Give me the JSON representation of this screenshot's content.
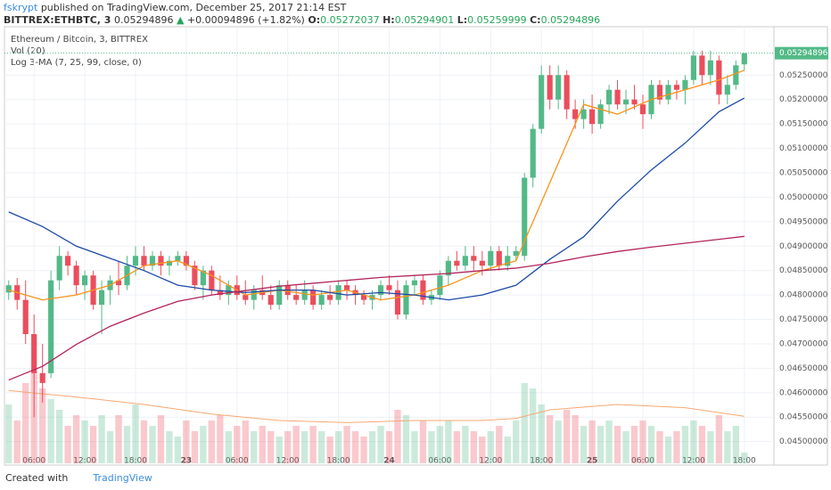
{
  "header": {
    "author": "fskrypt",
    "published": "published on TradingView.com, December 25, 2017 21:14 EST",
    "symbol": "BITTREX:ETHBTC, 3",
    "arrow": "▲",
    "change": "+0.00094896 (+1.82%)",
    "o": "O:",
    "h": "H:",
    "l": "L:",
    "c": "C:"
  },
  "legend": {
    "title": "Ethereum / Bitcoin, 3, BITTREX",
    "vol": "Vol (20)",
    "ma": "Log 3-MA (7, 25, 99, close, 0)"
  },
  "footer": {
    "created": "Created with",
    "brand": "TradingView"
  },
  "chart_data": {
    "type": "candlestick",
    "xlim": [
      -0.5,
      90.5
    ],
    "xticks": [
      {
        "value": 3,
        "label": "06:00"
      },
      {
        "value": 9,
        "label": "12:00"
      },
      {
        "value": 15,
        "label": "18:00"
      },
      {
        "value": 21,
        "label": "23"
      },
      {
        "value": 27,
        "label": "06:00"
      },
      {
        "value": 33,
        "label": "12:00"
      },
      {
        "value": 39,
        "label": "18:00"
      },
      {
        "value": 45,
        "label": "24"
      },
      {
        "value": 51,
        "label": "06:00"
      },
      {
        "value": 57,
        "label": "12:00"
      },
      {
        "value": 63,
        "label": "18:00"
      },
      {
        "value": 69,
        "label": "25"
      },
      {
        "value": 75,
        "label": "06:00"
      },
      {
        "value": 81,
        "label": "12:00"
      },
      {
        "value": 87,
        "label": "18:00"
      }
    ],
    "ylim": [
      0.04452,
      0.05349
    ],
    "yticks": [
      {
        "value": 0.045,
        "label": "0.04500000"
      },
      {
        "value": 0.0455,
        "label": "0.04550000"
      },
      {
        "value": 0.046,
        "label": "0.04600000"
      },
      {
        "value": 0.0465,
        "label": "0.04650000"
      },
      {
        "value": 0.047,
        "label": "0.04700000"
      },
      {
        "value": 0.0475,
        "label": "0.04750000"
      },
      {
        "value": 0.048,
        "label": "0.04800000"
      },
      {
        "value": 0.0485,
        "label": "0.04850000"
      },
      {
        "value": 0.049,
        "label": "0.04900000"
      },
      {
        "value": 0.0495,
        "label": "0.04950000"
      },
      {
        "value": 0.05,
        "label": "0.05000000"
      },
      {
        "value": 0.0505,
        "label": "0.05050000"
      },
      {
        "value": 0.051,
        "label": "0.05100000"
      },
      {
        "value": 0.0515,
        "label": "0.05150000"
      },
      {
        "value": 0.052,
        "label": "0.05200000"
      },
      {
        "value": 0.0525,
        "label": "0.05250000"
      }
    ],
    "up_color": "#53b987",
    "down_color": "#eb4d5c",
    "grid": true,
    "open": [
      0.04805,
      0.0482,
      0.0479,
      0.0472,
      0.0464,
      0.0464,
      0.0483,
      0.0488,
      0.0486,
      0.0482,
      0.0484,
      0.0478,
      0.0481,
      0.0483,
      0.0482,
      0.0486,
      0.0488,
      0.0486,
      0.0488,
      0.0486,
      0.0487,
      0.0488,
      0.0486,
      0.0482,
      0.0485,
      0.0481,
      0.048,
      0.0482,
      0.048,
      0.0479,
      0.0481,
      0.048,
      0.0478,
      0.0482,
      0.048,
      0.0479,
      0.0481,
      0.0478,
      0.048,
      0.0479,
      0.0482,
      0.0481,
      0.048,
      0.0479,
      0.048,
      0.0482,
      0.0481,
      0.0476,
      0.0482,
      0.0483,
      0.0479,
      0.048,
      0.0484,
      0.0487,
      0.0486,
      0.0488,
      0.0487,
      0.0486,
      0.0489,
      0.0486,
      0.0488,
      0.0488,
      0.0504,
      0.0514,
      0.0525,
      0.052,
      0.0525,
      0.0518,
      0.0516,
      0.0518,
      0.0515,
      0.0519,
      0.0522,
      0.0519,
      0.052,
      0.0519,
      0.0517,
      0.0523,
      0.052,
      0.0523,
      0.0522,
      0.0524,
      0.0529,
      0.0525,
      0.0528,
      0.0521,
      0.0523,
      0.05272037
    ],
    "high": [
      0.0483,
      0.04835,
      0.0483,
      0.0476,
      0.047,
      0.0485,
      0.049,
      0.0489,
      0.0487,
      0.0485,
      0.0485,
      0.0483,
      0.0484,
      0.0487,
      0.0488,
      0.049,
      0.049,
      0.0489,
      0.0489,
      0.0488,
      0.0489,
      0.0489,
      0.0487,
      0.0486,
      0.0486,
      0.0484,
      0.0483,
      0.0484,
      0.0483,
      0.0482,
      0.0484,
      0.0482,
      0.0483,
      0.0483,
      0.0482,
      0.0483,
      0.0482,
      0.0481,
      0.0482,
      0.0483,
      0.0483,
      0.0482,
      0.0481,
      0.0481,
      0.0483,
      0.0484,
      0.0483,
      0.0483,
      0.0484,
      0.0484,
      0.0481,
      0.0485,
      0.0488,
      0.0489,
      0.049,
      0.049,
      0.0489,
      0.049,
      0.049,
      0.049,
      0.049,
      0.0505,
      0.0515,
      0.0527,
      0.0527,
      0.0527,
      0.0526,
      0.052,
      0.052,
      0.0521,
      0.052,
      0.0523,
      0.0524,
      0.0522,
      0.0523,
      0.0521,
      0.0524,
      0.0524,
      0.0524,
      0.0524,
      0.0525,
      0.053,
      0.053,
      0.053,
      0.0529,
      0.0525,
      0.0528,
      0.05294901
    ],
    "low": [
      0.0479,
      0.0477,
      0.047,
      0.0455,
      0.0458,
      0.0463,
      0.0481,
      0.0484,
      0.048,
      0.0479,
      0.0477,
      0.0472,
      0.0478,
      0.048,
      0.0481,
      0.0484,
      0.0485,
      0.0485,
      0.0484,
      0.0484,
      0.0486,
      0.0485,
      0.0481,
      0.0479,
      0.048,
      0.0479,
      0.0478,
      0.0479,
      0.0478,
      0.0477,
      0.0479,
      0.0477,
      0.0477,
      0.0479,
      0.0478,
      0.0478,
      0.0477,
      0.0477,
      0.0478,
      0.0478,
      0.0479,
      0.0478,
      0.0478,
      0.0477,
      0.0479,
      0.048,
      0.0475,
      0.0475,
      0.048,
      0.0478,
      0.0478,
      0.0479,
      0.0482,
      0.0485,
      0.0485,
      0.0485,
      0.0484,
      0.0485,
      0.0485,
      0.0485,
      0.0487,
      0.0487,
      0.0502,
      0.0513,
      0.0518,
      0.0518,
      0.0516,
      0.0514,
      0.0514,
      0.0513,
      0.0514,
      0.0517,
      0.0518,
      0.0517,
      0.0518,
      0.0514,
      0.0516,
      0.0519,
      0.0519,
      0.052,
      0.0519,
      0.0523,
      0.0523,
      0.0523,
      0.0519,
      0.0519,
      0.0522,
      0.05259999
    ],
    "close": [
      0.0482,
      0.0479,
      0.0472,
      0.0464,
      0.0462,
      0.0483,
      0.0488,
      0.0486,
      0.0482,
      0.0484,
      0.0478,
      0.0481,
      0.0483,
      0.0482,
      0.0486,
      0.0488,
      0.0486,
      0.0488,
      0.0486,
      0.0487,
      0.0488,
      0.0486,
      0.0482,
      0.0485,
      0.0481,
      0.048,
      0.0482,
      0.048,
      0.0479,
      0.0481,
      0.048,
      0.0478,
      0.0482,
      0.048,
      0.0479,
      0.0481,
      0.0478,
      0.048,
      0.0479,
      0.0482,
      0.0481,
      0.048,
      0.0479,
      0.048,
      0.0482,
      0.0481,
      0.0476,
      0.0482,
      0.0483,
      0.0479,
      0.048,
      0.0484,
      0.0487,
      0.0486,
      0.0488,
      0.0487,
      0.0486,
      0.0489,
      0.0486,
      0.0488,
      0.0489,
      0.0504,
      0.0514,
      0.0525,
      0.052,
      0.0525,
      0.0518,
      0.0516,
      0.0518,
      0.0515,
      0.0519,
      0.0522,
      0.0519,
      0.052,
      0.0519,
      0.0517,
      0.0523,
      0.052,
      0.0523,
      0.0522,
      0.0524,
      0.0529,
      0.0525,
      0.0528,
      0.0521,
      0.0523,
      0.0527,
      0.05294896
    ],
    "vlim": [
      0,
      100
    ],
    "volume": [
      55,
      40,
      75,
      85,
      70,
      60,
      50,
      35,
      45,
      40,
      35,
      45,
      30,
      45,
      35,
      55,
      40,
      35,
      45,
      30,
      25,
      40,
      30,
      35,
      40,
      45,
      30,
      35,
      40,
      30,
      35,
      30,
      25,
      30,
      35,
      30,
      35,
      30,
      25,
      30,
      35,
      30,
      25,
      30,
      35,
      30,
      50,
      45,
      30,
      40,
      30,
      35,
      40,
      30,
      35,
      30,
      25,
      30,
      35,
      25,
      40,
      75,
      70,
      55,
      45,
      40,
      50,
      45,
      35,
      40,
      35,
      40,
      35,
      30,
      35,
      40,
      35,
      30,
      25,
      30,
      35,
      40,
      35,
      30,
      45,
      30,
      35,
      10
    ],
    "vol_ma": {
      "color": "#f7a872",
      "x": [
        0,
        8,
        16,
        24,
        32,
        40,
        48,
        56,
        60,
        64,
        72,
        80,
        87
      ],
      "values": [
        68,
        62,
        55,
        46,
        40,
        38,
        40,
        40,
        42,
        50,
        55,
        52,
        44
      ]
    },
    "ma": [
      {
        "color": "#f7931a",
        "x": [
          0,
          4,
          8,
          12,
          16,
          20,
          24,
          28,
          32,
          36,
          40,
          44,
          48,
          52,
          56,
          60,
          64,
          68,
          72,
          76,
          80,
          84,
          87
        ],
        "values": [
          0.0481,
          0.0479,
          0.048,
          0.0482,
          0.0486,
          0.0487,
          0.0484,
          0.048,
          0.0481,
          0.048,
          0.0481,
          0.0479,
          0.048,
          0.0482,
          0.0485,
          0.0487,
          0.0503,
          0.0519,
          0.0517,
          0.052,
          0.0522,
          0.0524,
          0.0526
        ]
      },
      {
        "color": "#1c4aa6",
        "x": [
          0,
          4,
          8,
          12,
          16,
          20,
          24,
          28,
          32,
          36,
          40,
          44,
          48,
          52,
          56,
          60,
          64,
          68,
          72,
          76,
          80,
          84,
          87
        ],
        "values": [
          0.0497,
          0.0494,
          0.049,
          0.04875,
          0.0485,
          0.0482,
          0.0481,
          0.04805,
          0.0481,
          0.0481,
          0.048,
          0.04805,
          0.048,
          0.0479,
          0.048,
          0.0482,
          0.04873,
          0.04919,
          0.04992,
          0.05056,
          0.05111,
          0.05175,
          0.05203
        ]
      },
      {
        "color": "#b3245c",
        "x": [
          0,
          4,
          8,
          12,
          16,
          20,
          24,
          28,
          32,
          36,
          40,
          44,
          48,
          52,
          56,
          60,
          64,
          68,
          72,
          76,
          80,
          84,
          87
        ],
        "values": [
          0.04626,
          0.04654,
          0.04699,
          0.04736,
          0.04763,
          0.04787,
          0.048,
          0.04809,
          0.04818,
          0.04824,
          0.0483,
          0.04836,
          0.0484,
          0.04844,
          0.0485,
          0.04855,
          0.04865,
          0.04878,
          0.04889,
          0.04898,
          0.04906,
          0.04914,
          0.0492
        ]
      }
    ]
  }
}
